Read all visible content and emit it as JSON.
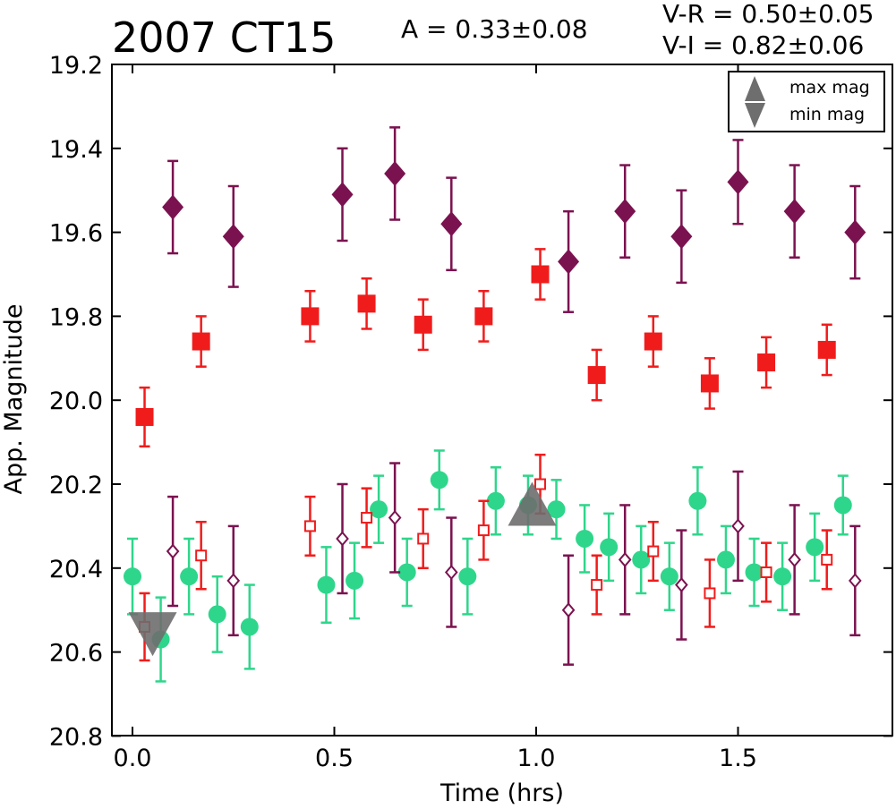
{
  "chart_data": {
    "type": "scatter",
    "title": "2007 CT15",
    "annotations": {
      "amplitude": "A  = 0.33±0.08",
      "v_r": "V-R  = 0.50±0.05",
      "v_i": "V-I  = 0.82±0.06"
    },
    "xlabel": "Time (hrs)",
    "ylabel": "App. Magnitude",
    "xlim": [
      -0.05,
      1.89
    ],
    "ylim": [
      20.8,
      19.2
    ],
    "y_inverted": true,
    "grid": false,
    "x_ticks": [
      "0.0",
      "0.5",
      "1.0",
      "1.5"
    ],
    "x_tick_values": [
      0.0,
      0.5,
      1.0,
      1.5
    ],
    "y_ticks": [
      "19.2",
      "19.4",
      "19.6",
      "19.8",
      "20.0",
      "20.2",
      "20.4",
      "20.6",
      "20.8"
    ],
    "y_tick_values": [
      19.2,
      19.4,
      19.6,
      19.8,
      20.0,
      20.2,
      20.4,
      20.6,
      20.8
    ],
    "legend": {
      "position": "top-right",
      "entries": [
        {
          "label": "max mag",
          "marker": "triangle-up"
        },
        {
          "label": "min mag",
          "marker": "triangle-down"
        }
      ]
    },
    "colors": {
      "dark_purple": "#7b1250",
      "red": "#f01c1c",
      "green": "#2ed68b",
      "gray": "#6e6e6e"
    },
    "series": [
      {
        "marker": "diamond-filled",
        "color": "#7b1250",
        "x": [
          0.1,
          0.25,
          0.52,
          0.65,
          0.79,
          1.08,
          1.22,
          1.36,
          1.5,
          1.64,
          1.79
        ],
        "y": [
          19.54,
          19.61,
          19.51,
          19.46,
          19.58,
          19.67,
          19.55,
          19.61,
          19.48,
          19.55,
          19.6
        ],
        "err": [
          0.11,
          0.12,
          0.11,
          0.11,
          0.11,
          0.12,
          0.11,
          0.11,
          0.1,
          0.11,
          0.11
        ]
      },
      {
        "marker": "square-filled",
        "color": "#f01c1c",
        "x": [
          0.03,
          0.17,
          0.44,
          0.58,
          0.72,
          0.87,
          1.01,
          1.15,
          1.29,
          1.43,
          1.57,
          1.72
        ],
        "y": [
          20.04,
          19.86,
          19.8,
          19.77,
          19.82,
          19.8,
          19.7,
          19.94,
          19.86,
          19.96,
          19.91,
          19.88
        ],
        "err": [
          0.07,
          0.06,
          0.06,
          0.06,
          0.06,
          0.06,
          0.06,
          0.06,
          0.06,
          0.06,
          0.06,
          0.06
        ]
      },
      {
        "marker": "circle-filled",
        "color": "#2ed68b",
        "x": [
          0.0,
          0.07,
          0.14,
          0.21,
          0.29,
          0.48,
          0.55,
          0.61,
          0.68,
          0.76,
          0.83,
          0.9,
          0.98,
          1.05,
          1.12,
          1.18,
          1.26,
          1.33,
          1.4,
          1.47,
          1.54,
          1.61,
          1.69,
          1.76
        ],
        "y": [
          20.42,
          20.57,
          20.42,
          20.51,
          20.54,
          20.44,
          20.43,
          20.26,
          20.41,
          20.19,
          20.42,
          20.24,
          20.25,
          20.26,
          20.33,
          20.35,
          20.38,
          20.42,
          20.24,
          20.38,
          20.41,
          20.42,
          20.35,
          20.25
        ],
        "err": [
          0.09,
          0.1,
          0.09,
          0.09,
          0.1,
          0.09,
          0.09,
          0.08,
          0.08,
          0.07,
          0.09,
          0.08,
          0.07,
          0.07,
          0.08,
          0.08,
          0.08,
          0.08,
          0.08,
          0.08,
          0.08,
          0.08,
          0.08,
          0.07
        ]
      },
      {
        "marker": "square-open",
        "color": "#f01c1c",
        "x": [
          0.03,
          0.17,
          0.44,
          0.58,
          0.72,
          0.87,
          1.01,
          1.15,
          1.29,
          1.43,
          1.57,
          1.72
        ],
        "y": [
          20.54,
          20.37,
          20.3,
          20.28,
          20.33,
          20.31,
          20.2,
          20.44,
          20.36,
          20.46,
          20.41,
          20.38
        ],
        "err": [
          0.08,
          0.08,
          0.07,
          0.07,
          0.07,
          0.07,
          0.07,
          0.07,
          0.07,
          0.08,
          0.07,
          0.07
        ]
      },
      {
        "marker": "diamond-open",
        "color": "#7b1250",
        "x": [
          0.1,
          0.25,
          0.52,
          0.65,
          0.79,
          1.08,
          1.22,
          1.36,
          1.5,
          1.64,
          1.79
        ],
        "y": [
          20.36,
          20.43,
          20.33,
          20.28,
          20.41,
          20.5,
          20.38,
          20.44,
          20.3,
          20.38,
          20.43
        ],
        "err": [
          0.13,
          0.13,
          0.13,
          0.13,
          0.13,
          0.13,
          0.13,
          0.13,
          0.13,
          0.13,
          0.13
        ]
      },
      {
        "marker": "triangle-up",
        "color": "#6e6e6e",
        "x": [
          0.99
        ],
        "y": [
          20.25
        ],
        "err": []
      },
      {
        "marker": "triangle-down",
        "color": "#6e6e6e",
        "x": [
          0.05
        ],
        "y": [
          20.55
        ],
        "err": []
      }
    ]
  }
}
